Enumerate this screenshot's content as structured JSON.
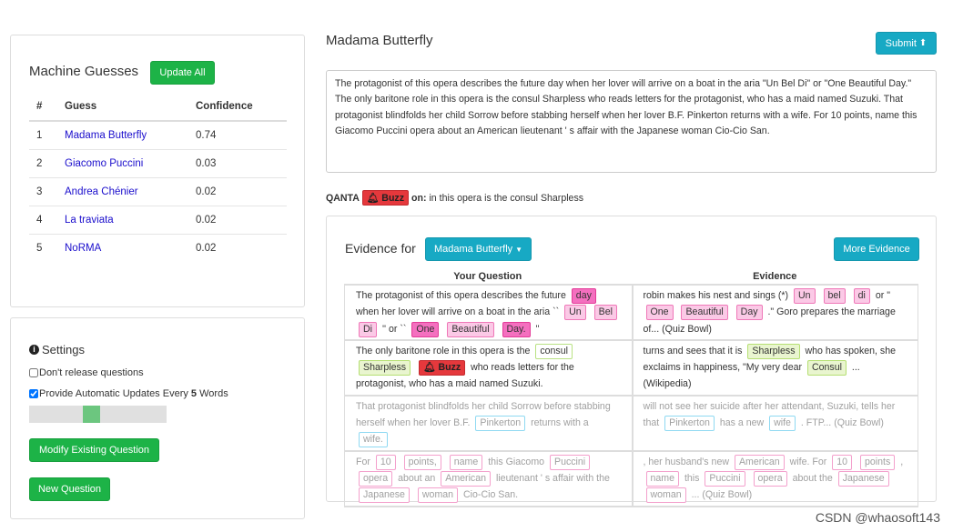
{
  "guesses": {
    "title": "Machine Guesses",
    "update_all": "Update All",
    "columns": [
      "#",
      "Guess",
      "Confidence"
    ],
    "rows": [
      {
        "n": "1",
        "guess": "Madama Butterfly",
        "conf": "0.74"
      },
      {
        "n": "2",
        "guess": "Giacomo Puccini",
        "conf": "0.03"
      },
      {
        "n": "3",
        "guess": "Andrea Chénier",
        "conf": "0.02"
      },
      {
        "n": "4",
        "guess": "La traviata",
        "conf": "0.02"
      },
      {
        "n": "5",
        "guess": "NoRMA",
        "conf": "0.02"
      }
    ]
  },
  "settings": {
    "title": "Settings",
    "dont_release": "Don't release questions",
    "dont_release_checked": false,
    "auto_update_prefix": "Provide Automatic Updates Every",
    "auto_update_n": "5",
    "auto_update_suffix": "Words",
    "auto_update_checked": true,
    "slider_fraction": 0.45,
    "modify_button": "Modify Existing Question",
    "new_button": "New Question"
  },
  "question": {
    "title": "Madama Butterfly",
    "submit": "Submit",
    "text": "The protagonist of this opera describes the future day when her lover will arrive on a boat in the aria \"Un Bel Di\" or \"One Beautiful Day.\" The only baritone role in this opera is the consul Sharpless who reads letters for the protagonist, who has a maid named Suzuki. That protagonist blindfolds her child Sorrow before stabbing herself when her lover B.F. Pinkerton returns with a wife. For 10 points, name this Giacomo Puccini opera about an American lieutenant ' s affair with the Japanese woman Cio-Cio San."
  },
  "qanta": {
    "label": "QANTA",
    "buzz": "Buzz",
    "on": "on:",
    "text": "in this opera is the consul Sharpless"
  },
  "evidence": {
    "label": "Evidence for",
    "dropdown": "Madama Butterfly",
    "more": "More Evidence",
    "col_question": "Your Question",
    "col_evidence": "Evidence",
    "colors": {
      "buzz": "#e5383c",
      "strong": "#f46fbf",
      "match": "#fbc9e6",
      "consul": "#e9f5cf",
      "future": "#8fd9f2"
    },
    "rows": [
      {
        "faded": false,
        "q": [
          [
            "The protagonist of this opera describes the future",
            ""
          ],
          [
            "day",
            "pink-strong"
          ],
          [
            "when her lover will arrive on a boat in the aria ``",
            ""
          ],
          [
            "Un",
            "pink"
          ],
          [
            "Bel",
            "pink"
          ],
          [
            "Di",
            "pink"
          ],
          [
            "'' or ``",
            ""
          ],
          [
            "One",
            "pink-strong"
          ],
          [
            "Beautiful",
            "pink"
          ],
          [
            "Day.",
            "pink-strong"
          ],
          [
            "''",
            ""
          ]
        ],
        "e": [
          [
            "robin makes his nest and sings (*)",
            ""
          ],
          [
            "Un",
            "pink"
          ],
          [
            "bel",
            "pink"
          ],
          [
            "di",
            "pink"
          ],
          [
            "or \"",
            ""
          ],
          [
            "One",
            "pink"
          ],
          [
            "Beautiful",
            "pink"
          ],
          [
            "Day",
            "pink"
          ],
          [
            ".\" Goro prepares the marriage of... (Quiz Bowl)",
            ""
          ]
        ]
      },
      {
        "faded": false,
        "q": [
          [
            "The only baritone role in this opera is the",
            ""
          ],
          [
            "consul",
            "green-line"
          ],
          [
            "Sharpless",
            "green"
          ],
          [
            "Buzz",
            "buzz"
          ],
          [
            "who reads letters for the protagonist, who has a maid named Suzuki.",
            ""
          ]
        ],
        "e": [
          [
            "turns and sees that it is",
            ""
          ],
          [
            "Sharpless",
            "green"
          ],
          [
            "who has spoken, she exclaims in happiness, \"My very dear",
            ""
          ],
          [
            "Consul",
            "green"
          ],
          [
            "... (Wikipedia)",
            ""
          ]
        ]
      },
      {
        "faded": true,
        "q": [
          [
            "That protagonist blindfolds her child Sorrow before stabbing herself when her lover B.F.",
            ""
          ],
          [
            "Pinkerton",
            "cyan"
          ],
          [
            "returns with a",
            ""
          ],
          [
            "wife.",
            "cyan"
          ]
        ],
        "e": [
          [
            "will not see her suicide after her attendant, Suzuki, tells her that",
            ""
          ],
          [
            "Pinkerton",
            "cyan"
          ],
          [
            "has a new",
            ""
          ],
          [
            "wife",
            "cyan"
          ],
          [
            ". FTP... (Quiz Bowl)",
            ""
          ]
        ]
      },
      {
        "faded": true,
        "q": [
          [
            "For",
            ""
          ],
          [
            "10",
            "pink-line"
          ],
          [
            "points,",
            "pink-line"
          ],
          [
            "name",
            "pink-line"
          ],
          [
            "this Giacomo",
            ""
          ],
          [
            "Puccini",
            "pink-line"
          ],
          [
            "opera",
            "pink-line"
          ],
          [
            "about an",
            ""
          ],
          [
            "American",
            "pink-line"
          ],
          [
            "lieutenant ' s affair with the",
            ""
          ],
          [
            "Japanese",
            "pink-line"
          ],
          [
            "woman",
            "pink-line"
          ],
          [
            "Cio-Cio San.",
            ""
          ]
        ],
        "e": [
          [
            ", her husband's new",
            ""
          ],
          [
            "American",
            "pink-line"
          ],
          [
            "wife. For",
            ""
          ],
          [
            "10",
            "pink-line"
          ],
          [
            "points",
            "pink-line"
          ],
          [
            ",",
            ""
          ],
          [
            "name",
            "pink-line"
          ],
          [
            "this",
            ""
          ],
          [
            "Puccini",
            "pink-line"
          ],
          [
            "opera",
            "pink-line"
          ],
          [
            "about the",
            ""
          ],
          [
            "Japanese",
            "pink-line"
          ],
          [
            "woman",
            "pink-line"
          ],
          [
            "... (Quiz Bowl)",
            ""
          ]
        ]
      }
    ]
  },
  "watermark": "CSDN @whaosoft143"
}
